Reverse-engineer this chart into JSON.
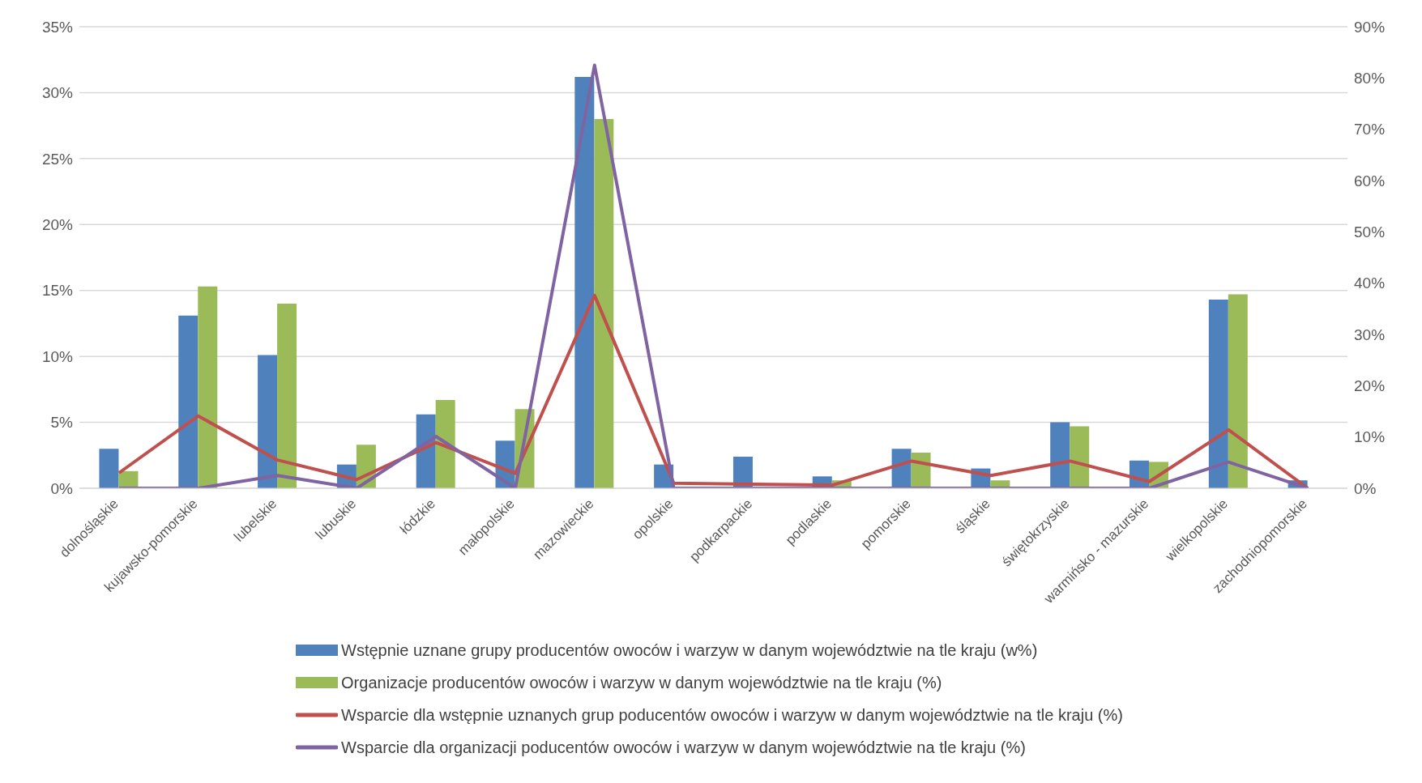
{
  "chart_data": {
    "type": "bar",
    "categories": [
      "dolnośląskie",
      "kujawsko-pomorskie",
      "lubelskie",
      "lubuskie",
      "łódzkie",
      "małopolskie",
      "mazowieckie",
      "opolskie",
      "podkarpackie",
      "podlaskie",
      "pomorskie",
      "śląskie",
      "świętokrzyskie",
      "warmińsko - mazurskie",
      "wielkopolskie",
      "zachodniopomorskie"
    ],
    "series": [
      {
        "name": "Wstępnie uznane grupy producentów owoców i warzyw w danym województwie na tle kraju (w%)",
        "color": "#4f81bd",
        "values": [
          3.0,
          13.1,
          10.1,
          1.8,
          5.6,
          3.6,
          31.2,
          1.8,
          2.4,
          0.9,
          3.0,
          1.5,
          5.0,
          2.1,
          14.3,
          0.6
        ]
      },
      {
        "name": "Organizacje producentów owoców i warzyw w danym województwie na tle kraju (%)",
        "color": "#9bbb59",
        "values": [
          1.3,
          15.3,
          14.0,
          3.3,
          6.7,
          6.0,
          28.0,
          0,
          0,
          0.6,
          2.7,
          0.6,
          4.7,
          2.0,
          14.7,
          0
        ]
      },
      {
        "name": "Wsparcie dla wstępnie uznanych grup poducentów owoców i warzyw w danym województwie na tle kraju (%)",
        "type": "line",
        "axis": "y2",
        "color": "#c0504d",
        "values": [
          3,
          14.1,
          5.5,
          1.7,
          8.9,
          2.9,
          37.6,
          1.0,
          0.8,
          0.6,
          5.3,
          2.5,
          5.3,
          1.3,
          11.4,
          0
        ]
      },
      {
        "name": "Wsparcie dla organizacji poducentów owoców i warzyw w danym województwie na tle kraju (%)",
        "type": "line",
        "axis": "y2",
        "color": "#8064a2",
        "values": [
          0,
          0,
          2.5,
          0,
          10.1,
          0,
          82.5,
          0,
          0,
          0,
          0,
          0,
          0,
          0,
          5.1,
          0
        ]
      }
    ],
    "ylim": [
      0,
      35
    ],
    "yticks": [
      {
        "value": 0,
        "label": "0%"
      },
      {
        "value": 5,
        "label": "5%"
      },
      {
        "value": 10,
        "label": "10%"
      },
      {
        "value": 15,
        "label": "15%"
      },
      {
        "value": 20,
        "label": "20%"
      },
      {
        "value": 25,
        "label": "25%"
      },
      {
        "value": 30,
        "label": "30%"
      },
      {
        "value": 35,
        "label": "35%"
      }
    ],
    "y2lim": [
      0,
      90
    ],
    "y2ticks": [
      {
        "value": 0,
        "label": "0%"
      },
      {
        "value": 10,
        "label": "10%"
      },
      {
        "value": 20,
        "label": "20%"
      },
      {
        "value": 30,
        "label": "30%"
      },
      {
        "value": 40,
        "label": "40%"
      },
      {
        "value": 50,
        "label": "50%"
      },
      {
        "value": 60,
        "label": "60%"
      },
      {
        "value": 70,
        "label": "70%"
      },
      {
        "value": 80,
        "label": "80%"
      },
      {
        "value": 90,
        "label": "90%"
      }
    ],
    "grid": "y",
    "legend": "bottom",
    "marker": "none"
  }
}
